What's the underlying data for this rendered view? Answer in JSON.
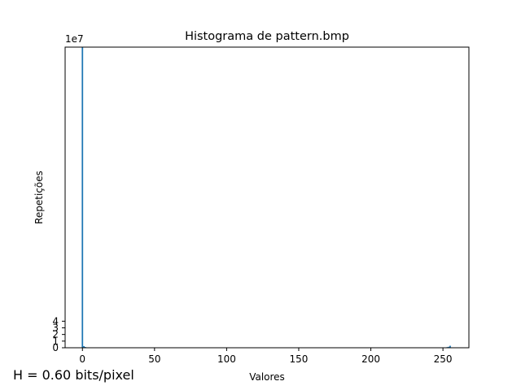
{
  "chart_data": {
    "type": "bar",
    "title": "Histograma de pattern.bmp",
    "xlabel": "Valores",
    "ylabel": "Repetições",
    "y_scale_label": "1e7",
    "xlim": [
      -12,
      268
    ],
    "ylim": [
      0,
      45.3
    ],
    "y_unit": 10000000,
    "xticks": [
      "0",
      "50",
      "100",
      "150",
      "200",
      "250"
    ],
    "yticks": [
      "0",
      "1",
      "2",
      "3",
      "4"
    ],
    "bar_color": "#1f77b4",
    "bars": [
      {
        "x": 0,
        "value": 45.3
      },
      {
        "x": 1,
        "value": 0.25
      },
      {
        "x": 2,
        "value": 0.12
      },
      {
        "x": 3,
        "value": 0.05
      },
      {
        "x": 252,
        "value": 0.05
      },
      {
        "x": 253,
        "value": 0.1
      },
      {
        "x": 254,
        "value": 0.15
      },
      {
        "x": 255,
        "value": 0.3
      }
    ]
  },
  "footer": {
    "entropy_text": "H = 0.60 bits/pixel"
  }
}
